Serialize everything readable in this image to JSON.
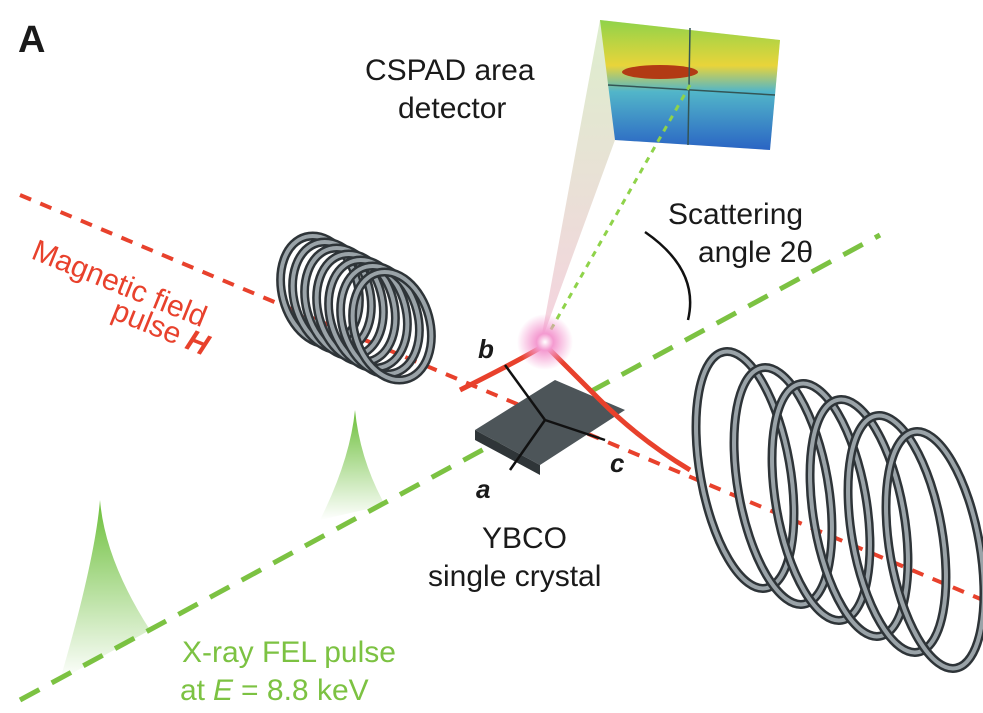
{
  "panel_label": "A",
  "detector": {
    "line1": "CSPAD area",
    "line2": "detector"
  },
  "scattering": {
    "line1": "Scattering",
    "line2": "angle 2θ"
  },
  "field": {
    "line1": "Magnetic field",
    "line2": "pulse",
    "symbol": "H"
  },
  "axes": {
    "a": "a",
    "b": "b",
    "c": "c"
  },
  "crystal": {
    "line1": "YBCO",
    "line2": "single crystal"
  },
  "xray": {
    "line1": "X-ray FEL pulse",
    "line2_prefix": "at",
    "symbol": "E",
    "line2_suffix": "= 8.8 keV"
  }
}
